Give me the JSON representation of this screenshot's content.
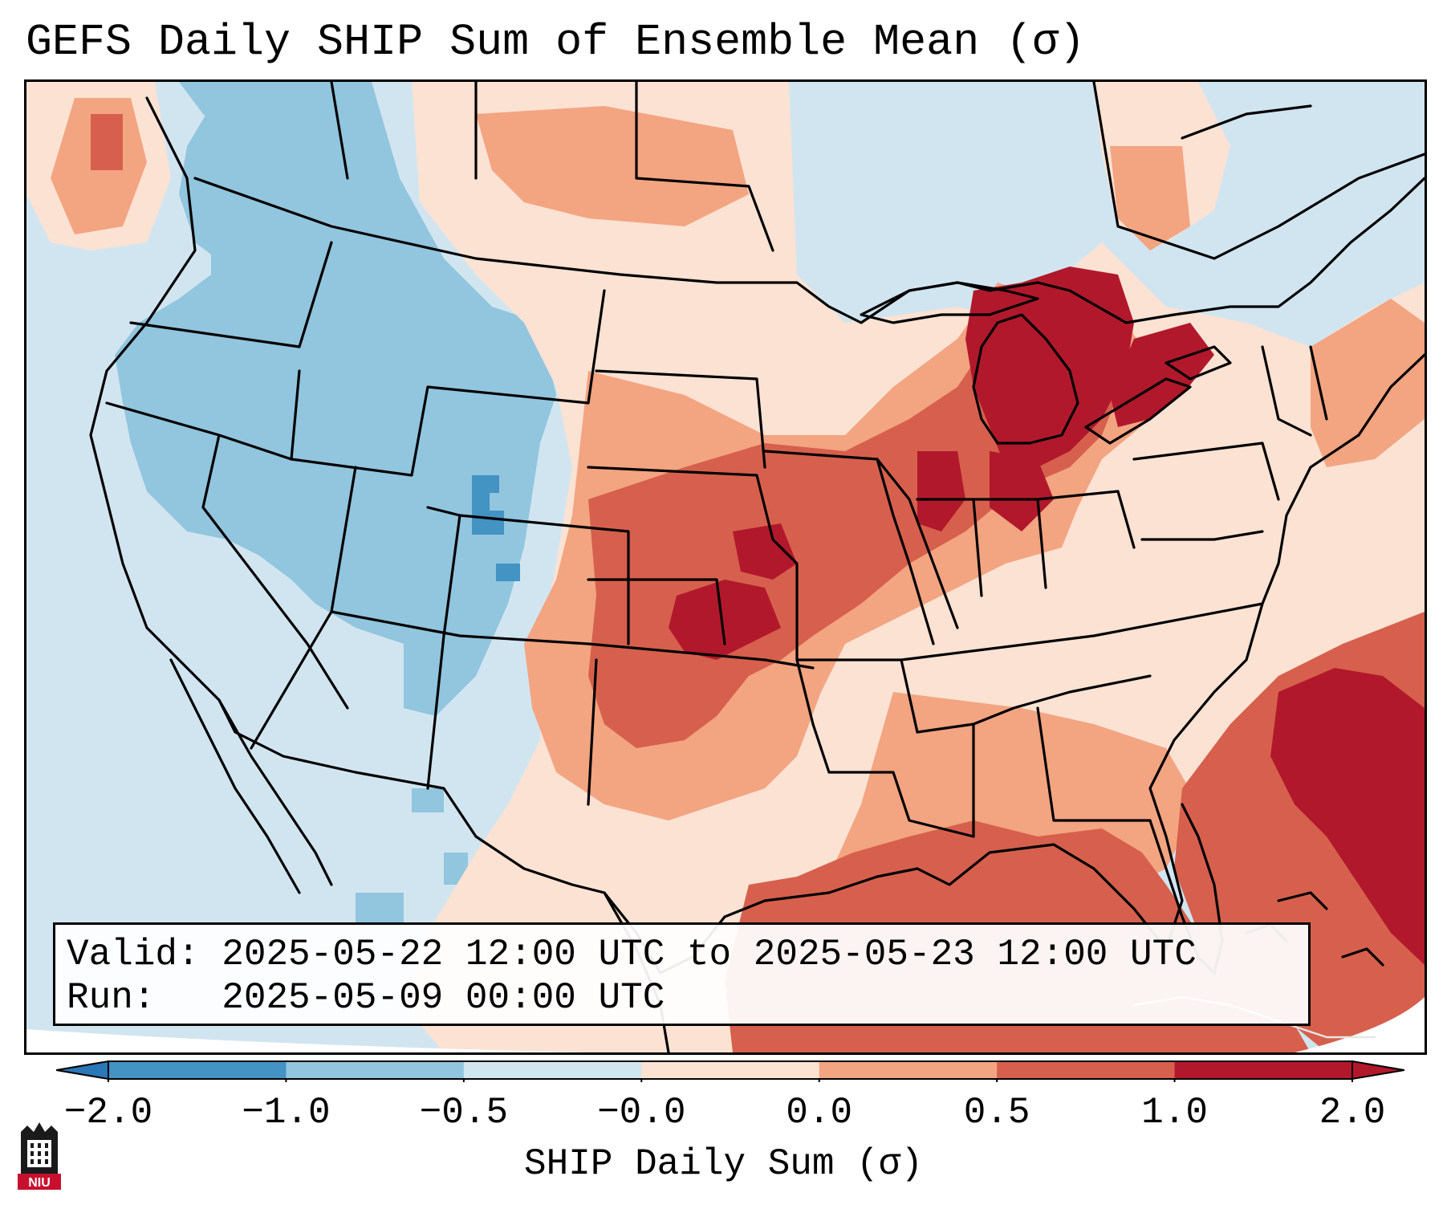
{
  "title": "GEFS Daily SHIP Sum of Ensemble Mean (σ)",
  "info": {
    "valid_line": "Valid: 2025-05-22 12:00 UTC to 2025-05-23 12:00 UTC",
    "run_line": "Run:   2025-05-09 00:00 UTC"
  },
  "colorbar": {
    "label": "SHIP Daily Sum (σ)",
    "ticks": [
      "−2.0",
      "−1.0",
      "−0.5",
      "−0.0",
      "0.0",
      "0.5",
      "1.0",
      "2.0"
    ],
    "colors": [
      "#2b78b8",
      "#4393c3",
      "#92c5de",
      "#d1e5f0",
      "#fbe2d3",
      "#f3a481",
      "#d6604d",
      "#b2182b"
    ],
    "extend": "both"
  },
  "logo": {
    "text": "NIU",
    "background": "#c8102e"
  },
  "map": {
    "region": "Continental United States, Gulf of Mexico and western Atlantic",
    "colors": {
      "pos_strong": "#b2182b",
      "pos_mid": "#d6604d",
      "pos_weak": "#f3a481",
      "pos_slight": "#fbe2d3",
      "neg_slight": "#d1e5f0",
      "neg_weak": "#92c5de",
      "neg_mid": "#4393c3"
    }
  }
}
